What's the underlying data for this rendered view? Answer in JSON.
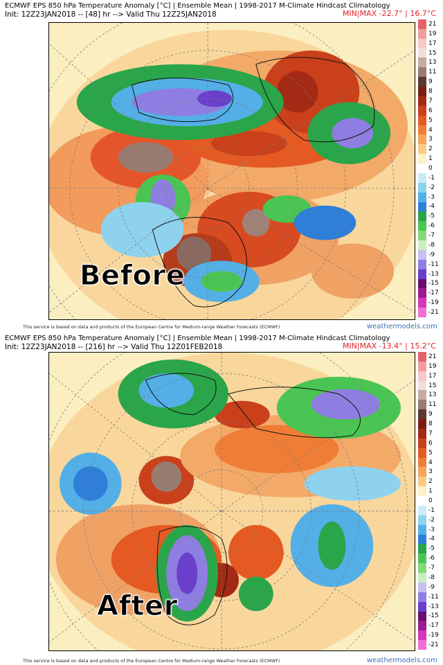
{
  "colors": {
    "minmax": "#d9232a",
    "brand": "#3b6fb6"
  },
  "colorbar": {
    "labels": [
      "21",
      "19",
      "17",
      "15",
      "13",
      "11",
      "9",
      "8",
      "7",
      "6",
      "5",
      "4",
      "3",
      "2",
      "1",
      "0",
      "-1",
      "-2",
      "-3",
      "-4",
      "-5",
      "-6",
      "-7",
      "-8",
      "-9",
      "-11",
      "-13",
      "-15",
      "-17",
      "-19",
      "-21"
    ],
    "colors": [
      "#e2646a",
      "#f29d9d",
      "#f8c8c8",
      "#f1dfdb",
      "#c8aaa2",
      "#9a7b70",
      "#5a3a2e",
      "#7a1e12",
      "#a32a14",
      "#c9401b",
      "#e45a22",
      "#ef7d36",
      "#f6a55a",
      "#fbcb86",
      "#fbf1c6",
      "#ffffff",
      "#c9ecf7",
      "#8fd2ee",
      "#54afe6",
      "#2f7fd8",
      "#2aa54a",
      "#4ac553",
      "#84d978",
      "#c8eec0",
      "#c5c0ef",
      "#8f7ee1",
      "#6a3fcc",
      "#6a0f6c",
      "#9b1d8e",
      "#d836b8",
      "#f26fd6"
    ]
  },
  "panels": [
    {
      "title": "ECMWF EPS 850 hPa Temperature Anomaly [°C] | Ensemble Mean | 1998-2017 M-Climate Hindcast Climatology",
      "init": "Init: 12Z23JAN2018 -- [48] hr --> Valid Thu 12Z25JAN2018",
      "minmax": "MIN|MAX -22.7° | 16.7°C",
      "label": "Before",
      "notice": "This service is based on data and products of the European Centre for Medium-range Weather Forecasts (ECMWF)",
      "brand": "weathermodels.com"
    },
    {
      "title": "ECMWF EPS 850 hPa Temperature Anomaly [°C] | Ensemble Mean | 1998-2017 M-Climate Hindcast Climatology",
      "init": "Init: 12Z23JAN2018 -- [216] hr --> Valid Thu 12Z01FEB2018",
      "minmax": "MIN|MAX -13.4° | 15.2°C",
      "label": "After",
      "notice": "This service is based on data and products of the European Centre for Medium-range Weather Forecasts (ECMWF)",
      "brand": "weathermodels.com"
    }
  ]
}
